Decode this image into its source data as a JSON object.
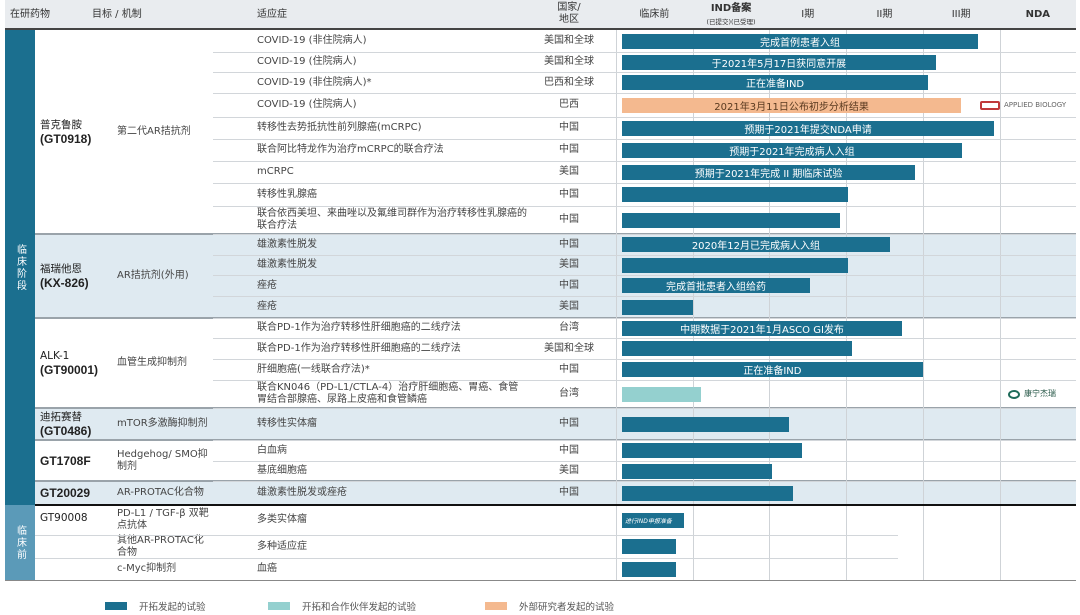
{
  "header": {
    "drug": "在研药物",
    "target": "目标 / 机制",
    "indication": "适应症",
    "region": "国家/地区",
    "phases": [
      "临床前",
      "IND备案",
      "I期",
      "II期",
      "III期",
      "NDA"
    ],
    "ind_sub": "(已提交)(已受理)"
  },
  "sections": {
    "clinical": "临床阶段",
    "preclinical": "临床前"
  },
  "colors": {
    "company": "#1b6f8f",
    "partner": "#94d0cf",
    "external": "#f4b98f",
    "band": "#dfeaf1"
  },
  "phase_scale_note_units": "phase columns (0 = start of 临床前, 6 = end of NDA)",
  "groups": [
    {
      "drug_cn": "普克鲁胺",
      "drug_code": "(GT0918)",
      "target": "第二代AR拮抗剂",
      "band": false,
      "rows": [
        {
          "indication": "COVID-19 (非住院病人)",
          "region": "美国和全球",
          "progress": 4.72,
          "sponsor": "company",
          "bar_text": "完成首例患者入组"
        },
        {
          "indication": "COVID-19 (住院病人)",
          "region": "美国和全球",
          "progress": 4.17,
          "sponsor": "company",
          "bar_text": "于2021年5月17日获同意开展"
        },
        {
          "indication": "COVID-19 (非住院病人)*",
          "region": "巴西和全球",
          "progress": 4.07,
          "sponsor": "company",
          "bar_text": "正在准备IND"
        },
        {
          "indication": "COVID-19 (住院病人)",
          "region": "巴西",
          "progress": 4.5,
          "sponsor": "external",
          "bar_text": "2021年3月11日公布初步分析结果",
          "partner_logo": "APPLIED BIOLOGY"
        },
        {
          "indication": "转移性去势抵抗性前列腺癌(mCRPC)",
          "region": "中国",
          "progress": 4.93,
          "sponsor": "company",
          "bar_text": "预期于2021年提交NDA申请"
        },
        {
          "indication": "联合阿比特龙作为治疗mCRPC的联合疗法",
          "region": "中国",
          "progress": 4.51,
          "sponsor": "company",
          "bar_text": "预期于2021年完成病人入组"
        },
        {
          "indication": "mCRPC",
          "region": "美国",
          "progress": 3.9,
          "sponsor": "company",
          "bar_text": "预期于2021年完成 II 期临床试验"
        },
        {
          "indication": "转移性乳腺癌",
          "region": "中国",
          "progress": 3.02,
          "sponsor": "company",
          "bar_text": ""
        },
        {
          "indication": "联合依西美坦、来曲唑以及氟维司群作为治疗转移性乳腺癌的联合疗法",
          "region": "中国",
          "progress": 2.92,
          "sponsor": "company",
          "bar_text": ""
        }
      ]
    },
    {
      "drug_cn": "福瑞他恩",
      "drug_code": "(KX-826)",
      "target": "AR拮抗剂(外用)",
      "band": true,
      "rows": [
        {
          "indication": "雄激素性脱发",
          "region": "中国",
          "progress": 3.57,
          "sponsor": "company",
          "bar_text": "2020年12月已完成病人入组"
        },
        {
          "indication": "雄激素性脱发",
          "region": "美国",
          "progress": 3.02,
          "sponsor": "company",
          "bar_text": ""
        },
        {
          "indication": "痤疮",
          "region": "中国",
          "progress": 2.53,
          "sponsor": "company",
          "bar_text": "完成首批患者入组给药"
        },
        {
          "indication": "痤疮",
          "region": "美国",
          "progress": 1.0,
          "sponsor": "company",
          "bar_text": ""
        }
      ]
    },
    {
      "drug_cn": "ALK-1",
      "drug_code": "(GT90001)",
      "target": "血管生成抑制剂",
      "band": false,
      "rows": [
        {
          "indication": "联合PD-1作为治疗转移性肝细胞癌的二线疗法",
          "region": "台湾",
          "progress": 3.73,
          "sponsor": "company",
          "bar_text": "中期数据于2021年1月ASCO GI发布"
        },
        {
          "indication": "联合PD-1作为治疗转移性肝细胞癌的二线疗法",
          "region": "美国和全球",
          "progress": 3.08,
          "sponsor": "company",
          "bar_text": ""
        },
        {
          "indication": "肝细胞癌(一线联合疗法)*",
          "region": "中国",
          "progress": 4.0,
          "sponsor": "company",
          "bar_text": "正在准备IND"
        },
        {
          "indication": "联合KN046（PD-L1/CTLA-4）治疗肝细胞癌、胃癌、食管胃结合部腺癌、尿路上皮癌和食管鳞癌",
          "region": "台湾",
          "progress": 1.11,
          "sponsor": "partner",
          "bar_text": "",
          "partner_logo": "康宁杰瑞"
        }
      ]
    },
    {
      "drug_cn": "迪拓赛替",
      "drug_code": "(GT0486)",
      "target": "mTOR多激酶抑制剂",
      "band": true,
      "rows": [
        {
          "indication": "转移性实体瘤",
          "region": "中国",
          "progress": 2.26,
          "sponsor": "company",
          "bar_text": ""
        }
      ]
    },
    {
      "drug_cn": "",
      "drug_code": "GT1708F",
      "target": "Hedgehog/ SMO抑制剂",
      "band": false,
      "rows": [
        {
          "indication": "白血病",
          "region": "中国",
          "progress": 2.43,
          "sponsor": "company",
          "bar_text": ""
        },
        {
          "indication": "基底细胞癌",
          "region": "美国",
          "progress": 2.03,
          "sponsor": "company",
          "bar_text": ""
        }
      ]
    },
    {
      "drug_cn": "",
      "drug_code": "GT20029",
      "target": "AR-PROTAC化合物",
      "band": true,
      "rows": [
        {
          "indication": "雄激素性脱发或痤疮",
          "region": "中国",
          "progress": 2.31,
          "sponsor": "company",
          "bar_text": ""
        }
      ]
    }
  ],
  "preclinical": [
    {
      "drug": "GT90008",
      "target": "PD-L1 / TGF-β 双靶点抗体",
      "indication": "多类实体瘤",
      "progress": 0.89,
      "sponsor": "company",
      "bar_text": "进行IND申报准备"
    },
    {
      "drug": "",
      "target": "其他AR-PROTAC化合物",
      "indication": "多种适应症",
      "progress": 0.78,
      "sponsor": "company",
      "bar_text": ""
    },
    {
      "drug": "",
      "target": "c-Myc抑制剂",
      "indication": "血癌",
      "progress": 0.78,
      "sponsor": "company",
      "bar_text": ""
    }
  ],
  "legend": [
    {
      "label": "开拓发起的试验",
      "sponsor": "company"
    },
    {
      "label": "开拓和合作伙伴发起的试验",
      "sponsor": "partner"
    },
    {
      "label": "外部研究者发起的试验",
      "sponsor": "external"
    }
  ]
}
